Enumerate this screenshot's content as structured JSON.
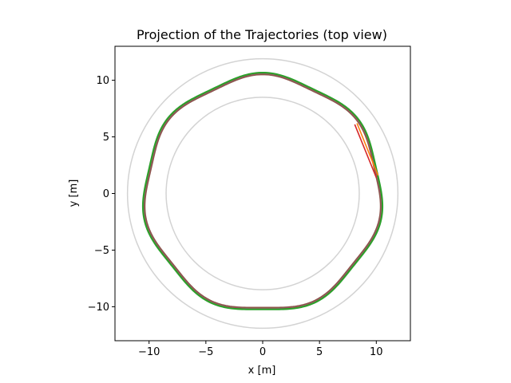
{
  "chart_data": {
    "type": "line",
    "title": "Projection of the Trajectories (top view)",
    "xlabel": "x [m]",
    "ylabel": "y [m]",
    "xlim": [
      -13,
      13
    ],
    "ylim": [
      -13,
      13
    ],
    "xticks": [
      -10,
      -5,
      0,
      5,
      10
    ],
    "yticks": [
      -10,
      -5,
      0,
      5,
      10
    ],
    "xtick_labels": [
      "−10",
      "−5",
      "0",
      "5",
      "10"
    ],
    "ytick_labels": [
      "−10",
      "−5",
      "0",
      "5",
      "10"
    ],
    "grid": false,
    "boundary_circles": [
      {
        "radius": 8.5,
        "color": "#d3d3d3"
      },
      {
        "radius": 11.9,
        "color": "#d3d3d3"
      }
    ],
    "series": [
      {
        "color": "#1f77b4",
        "base_radius": 10.35,
        "lobes": 7,
        "amplitude": 0.22,
        "phase_deg": 90
      },
      {
        "color": "#ff7f0e",
        "base_radius": 10.38,
        "lobes": 7,
        "amplitude": 0.22,
        "phase_deg": 90
      },
      {
        "color": "#d62728",
        "base_radius": 10.33,
        "lobes": 7,
        "amplitude": 0.22,
        "phase_deg": 90
      },
      {
        "color": "#9467bd",
        "base_radius": 10.3,
        "lobes": 7,
        "amplitude": 0.22,
        "phase_deg": 90
      },
      {
        "color": "#8c564b",
        "base_radius": 10.28,
        "lobes": 7,
        "amplitude": 0.22,
        "phase_deg": 90
      },
      {
        "color": "#2ca02c",
        "base_radius": 10.45,
        "lobes": 7,
        "amplitude": 0.22,
        "phase_deg": 90
      }
    ],
    "segments": [
      {
        "color": "#ff7f0e",
        "from": [
          10.15,
          1.6
        ],
        "to": [
          8.3,
          6.2
        ]
      },
      {
        "color": "#d62728",
        "from": [
          10.0,
          1.4
        ],
        "to": [
          8.1,
          6.1
        ]
      }
    ]
  }
}
